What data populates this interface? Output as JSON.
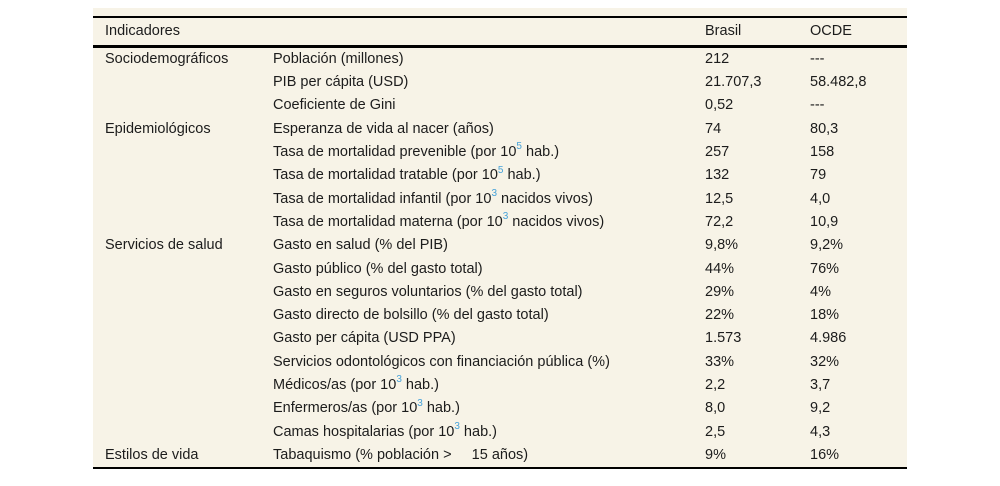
{
  "table": {
    "header": {
      "indicadores": "Indicadores",
      "brasil": "Brasil",
      "ocde": "OCDE"
    },
    "rows": [
      {
        "group": "Sociodemográficos",
        "label": [
          {
            "t": "Población (millones)"
          }
        ],
        "brasil": "212",
        "ocde": "---"
      },
      {
        "group": "",
        "label": [
          {
            "t": "PIB per cápita (USD)"
          }
        ],
        "brasil": "21.707,3",
        "ocde": "58.482,8"
      },
      {
        "group": "",
        "label": [
          {
            "t": "Coeficiente de Gini"
          }
        ],
        "brasil": "0,52",
        "ocde": "---"
      },
      {
        "group": "Epidemiológicos",
        "label": [
          {
            "t": "Esperanza de vida al nacer (años)"
          }
        ],
        "brasil": "74",
        "ocde": "80,3"
      },
      {
        "group": "",
        "label": [
          {
            "t": "Tasa de mortalidad prevenible (por 10"
          },
          {
            "sup": "5"
          },
          {
            "t": " hab.)"
          }
        ],
        "brasil": "257",
        "ocde": "158"
      },
      {
        "group": "",
        "label": [
          {
            "t": "Tasa de mortalidad tratable (por 10"
          },
          {
            "sup": "5"
          },
          {
            "t": " hab.)"
          }
        ],
        "brasil": "132",
        "ocde": "79"
      },
      {
        "group": "",
        "label": [
          {
            "t": "Tasa de mortalidad infantil (por 10"
          },
          {
            "sup": "3"
          },
          {
            "t": " nacidos vivos)"
          }
        ],
        "brasil": "12,5",
        "ocde": "4,0"
      },
      {
        "group": "",
        "label": [
          {
            "t": "Tasa de mortalidad materna (por 10"
          },
          {
            "sup": "3"
          },
          {
            "t": " nacidos vivos)"
          }
        ],
        "brasil": "72,2",
        "ocde": "10,9"
      },
      {
        "group": "Servicios de salud",
        "label": [
          {
            "t": "Gasto en salud (% del PIB)"
          }
        ],
        "brasil": "9,8%",
        "ocde": "9,2%"
      },
      {
        "group": "",
        "label": [
          {
            "t": "Gasto público (% del gasto total)"
          }
        ],
        "brasil": "44%",
        "ocde": "76%"
      },
      {
        "group": "",
        "label": [
          {
            "t": "Gasto en seguros voluntarios (% del gasto total)"
          }
        ],
        "brasil": "29%",
        "ocde": "4%"
      },
      {
        "group": "",
        "label": [
          {
            "t": "Gasto directo de bolsillo (% del gasto total)"
          }
        ],
        "brasil": "22%",
        "ocde": "18%"
      },
      {
        "group": "",
        "label": [
          {
            "t": "Gasto per cápita (USD PPA)"
          }
        ],
        "brasil": "1.573",
        "ocde": "4.986"
      },
      {
        "group": "",
        "label": [
          {
            "t": "Servicios odontológicos con financiación pública (%)"
          }
        ],
        "brasil": "33%",
        "ocde": "32%"
      },
      {
        "group": "",
        "label": [
          {
            "t": "Médicos/as (por 10"
          },
          {
            "sup": "3"
          },
          {
            "t": " hab.)"
          }
        ],
        "brasil": "2,2",
        "ocde": "3,7"
      },
      {
        "group": "",
        "label": [
          {
            "t": "Enfermeros/as (por 10"
          },
          {
            "sup": "3"
          },
          {
            "t": " hab.)"
          }
        ],
        "brasil": "8,0",
        "ocde": "9,2"
      },
      {
        "group": "",
        "label": [
          {
            "t": "Camas hospitalarias (por 10"
          },
          {
            "sup": "3"
          },
          {
            "t": " hab.)"
          }
        ],
        "brasil": "2,5",
        "ocde": "4,3"
      },
      {
        "group": "Estilos de vida",
        "label": [
          {
            "t": "Tabaquismo (% población >     15 años)"
          }
        ],
        "brasil": "9%",
        "ocde": "16%"
      }
    ]
  },
  "colors": {
    "panel_background": "#f7f3e7",
    "rule": "#000000",
    "text": "#1c1c1c",
    "superscript_blue": "#46a2d9"
  }
}
